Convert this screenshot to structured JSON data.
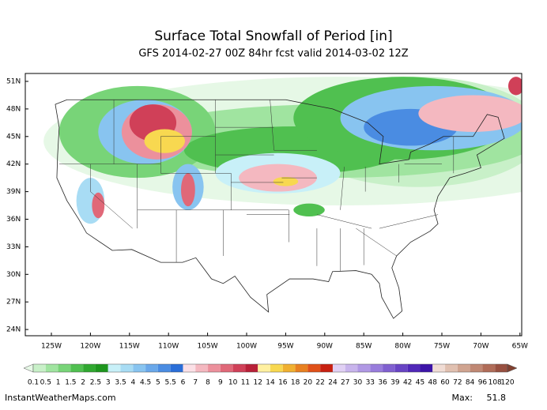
{
  "header": {
    "title": "Surface Total Snowfall of Period [in]",
    "subtitle": "GFS 2014-02-27 00Z 84hr fcst valid 2014-03-02 12Z"
  },
  "map": {
    "lat_labels": [
      "51N",
      "48N",
      "45N",
      "42N",
      "39N",
      "36N",
      "33N",
      "30N",
      "27N",
      "24N"
    ],
    "lon_labels": [
      "125W",
      "120W",
      "115W",
      "110W",
      "105W",
      "100W",
      "95W",
      "90W",
      "85W",
      "80W",
      "75W",
      "70W",
      "65W"
    ]
  },
  "colorbar": {
    "labels": [
      "0.1",
      "0.5",
      "1",
      "1.5",
      "2",
      "2.5",
      "3",
      "3.5",
      "4",
      "4.5",
      "5",
      "5.5",
      "6",
      "7",
      "8",
      "9",
      "10",
      "11",
      "12",
      "14",
      "16",
      "18",
      "20",
      "22",
      "24",
      "27",
      "30",
      "33",
      "36",
      "39",
      "42",
      "45",
      "48",
      "60",
      "72",
      "84",
      "96",
      "108",
      "120"
    ],
    "colors": [
      "#e6f8e6",
      "#c8f0c8",
      "#a0e4a0",
      "#78d478",
      "#50c050",
      "#30a830",
      "#1e961e",
      "#c8f0f8",
      "#a8dcf4",
      "#88c4f0",
      "#6aa8ea",
      "#4a8ce2",
      "#2a6ed8",
      "#fbe0e6",
      "#f4b8c0",
      "#ec909c",
      "#e06878",
      "#d04058",
      "#b82038",
      "#fff0a0",
      "#f8d850",
      "#f0b030",
      "#e88020",
      "#e05018",
      "#c82010",
      "#e0d0f4",
      "#c8b4ec",
      "#b098e4",
      "#987cdc",
      "#8060d0",
      "#6844c4",
      "#5028b8",
      "#3c14a8",
      "#f0dcd4",
      "#e0c0b0",
      "#d0a490",
      "#c08874",
      "#b06c58",
      "#985040",
      "#804030"
    ]
  },
  "footer": {
    "site": "InstantWeatherMaps.com",
    "max_label": "Max:",
    "max_value": "51.8"
  }
}
